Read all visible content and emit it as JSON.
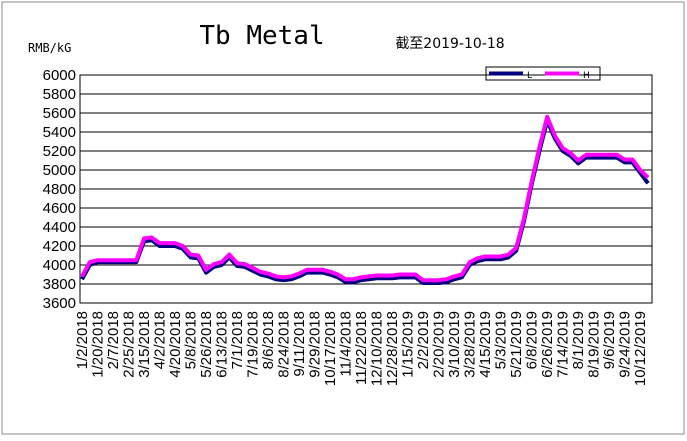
{
  "chart_data": {
    "type": "line",
    "title": "Tb Metal",
    "subtitle": "截至2019-10-18",
    "y_label": "RMB/kG",
    "categories": [
      "1/2/2018",
      null,
      "1/20/2018",
      null,
      "2/7/2018",
      null,
      "2/25/2018",
      null,
      "3/15/2018",
      null,
      "4/2/2018",
      null,
      "4/20/2018",
      null,
      "5/8/2018",
      null,
      "5/26/2018",
      null,
      "6/13/2018",
      null,
      "7/1/2018",
      null,
      "7/19/2018",
      null,
      "8/6/2018",
      null,
      "8/24/2018",
      null,
      "9/11/2018",
      null,
      "9/29/2018",
      null,
      "10/17/2018",
      null,
      "11/4/2018",
      null,
      "11/22/2018",
      null,
      "12/10/2018",
      null,
      "12/28/2018",
      null,
      "1/15/2019",
      null,
      "2/2/2019",
      null,
      "2/20/2019",
      null,
      "3/10/2019",
      null,
      "3/28/2019",
      null,
      "4/15/2019",
      null,
      "5/3/2019",
      null,
      "5/21/2019",
      null,
      "6/8/2019",
      null,
      "6/26/2019",
      null,
      "7/14/2019",
      null,
      "8/1/2019",
      null,
      "8/19/2019",
      null,
      "9/6/2019",
      null,
      "9/24/2019",
      null,
      "10/12/2019",
      null
    ],
    "series": [
      {
        "name": "L",
        "color": "#000080",
        "values": [
          3850,
          4000,
          4030,
          4030,
          4030,
          4030,
          4030,
          4030,
          4250,
          4260,
          4200,
          4200,
          4200,
          4170,
          4080,
          4070,
          3920,
          3980,
          4000,
          4080,
          3990,
          3980,
          3940,
          3900,
          3880,
          3850,
          3840,
          3850,
          3880,
          3920,
          3920,
          3920,
          3900,
          3870,
          3820,
          3820,
          3840,
          3850,
          3860,
          3860,
          3860,
          3870,
          3870,
          3870,
          3810,
          3810,
          3810,
          3820,
          3850,
          3870,
          4000,
          4040,
          4060,
          4060,
          4060,
          4080,
          4150,
          4460,
          4850,
          5200,
          5520,
          5330,
          5200,
          5150,
          5070,
          5130,
          5130,
          5130,
          5130,
          5130,
          5080,
          5080,
          4970,
          4860
        ]
      },
      {
        "name": "H",
        "color": "#ff00ff",
        "values": [
          3880,
          4030,
          4050,
          4050,
          4050,
          4050,
          4050,
          4050,
          4280,
          4290,
          4230,
          4230,
          4230,
          4200,
          4110,
          4100,
          3950,
          4010,
          4030,
          4110,
          4020,
          4010,
          3970,
          3930,
          3910,
          3880,
          3870,
          3880,
          3910,
          3950,
          3950,
          3950,
          3930,
          3900,
          3850,
          3850,
          3870,
          3880,
          3890,
          3890,
          3890,
          3900,
          3900,
          3900,
          3840,
          3840,
          3840,
          3850,
          3880,
          3900,
          4030,
          4070,
          4090,
          4090,
          4090,
          4110,
          4180,
          4490,
          4880,
          5240,
          5560,
          5360,
          5230,
          5180,
          5100,
          5160,
          5160,
          5160,
          5160,
          5160,
          5110,
          5110,
          5000,
          4920
        ]
      }
    ],
    "ylim": [
      3600,
      6000
    ],
    "yticks": [
      3600,
      3800,
      4000,
      4200,
      4400,
      4600,
      4800,
      5000,
      5200,
      5400,
      5600,
      5800,
      6000
    ],
    "grid": true
  }
}
